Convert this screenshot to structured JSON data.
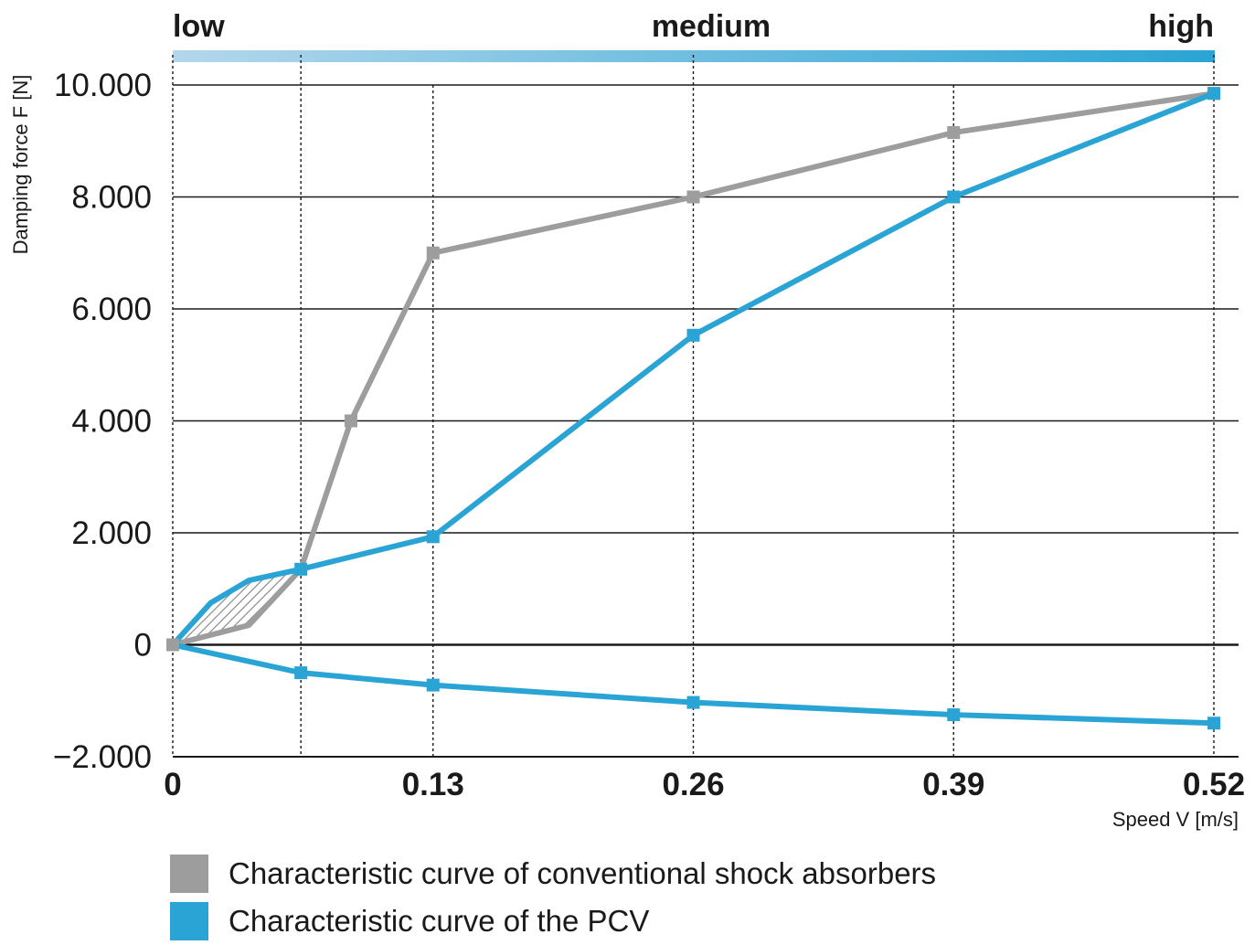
{
  "chart_data": {
    "type": "line",
    "band": {
      "labels": [
        "low",
        "medium",
        "high"
      ],
      "colors": [
        "#b3d7ec",
        "#2aa4d4"
      ]
    },
    "ylabel": "Damping force F [N]",
    "xlabel": "Speed V [m/s]",
    "xlim": [
      0,
      0.52
    ],
    "ylim": [
      -2000,
      10000
    ],
    "x_tick_values": [
      0,
      0.13,
      0.26,
      0.39,
      0.52
    ],
    "x_tick_labels": [
      "0",
      "0.13",
      "0.26",
      "0.39",
      "0.52"
    ],
    "y_tick_values": [
      10000,
      8000,
      6000,
      4000,
      2000,
      0,
      -2000
    ],
    "y_tick_labels": [
      "10.000",
      "8.000",
      "6.000",
      "4.000",
      "2.000",
      "0",
      "−2.000"
    ],
    "grid": true,
    "hatched_region": "between series at low speed (0 to 0.064 m/s)",
    "series": [
      {
        "name": "Characteristic curve of conventional shock absorbers",
        "color": "#9d9d9d",
        "points": [
          [
            0,
            0
          ],
          [
            0.038,
            350
          ],
          [
            0.064,
            1350
          ],
          [
            0.089,
            4000
          ],
          [
            0.13,
            7000
          ],
          [
            0.26,
            8000
          ],
          [
            0.39,
            9150
          ],
          [
            0.52,
            9850
          ]
        ]
      },
      {
        "name": "Characteristic curve of the PCV",
        "color": "#2aa4d4",
        "points": [
          [
            0,
            0
          ],
          [
            0.019,
            750
          ],
          [
            0.038,
            1150
          ],
          [
            0.064,
            1350
          ],
          [
            0.13,
            1930
          ],
          [
            0.26,
            5530
          ],
          [
            0.39,
            8000
          ],
          [
            0.52,
            9850
          ]
        ]
      },
      {
        "name": "",
        "color": "#2aa4d4",
        "points": [
          [
            0,
            0
          ],
          [
            0.064,
            -500
          ],
          [
            0.13,
            -720
          ],
          [
            0.26,
            -1030
          ],
          [
            0.39,
            -1250
          ],
          [
            0.52,
            -1400
          ]
        ]
      }
    ],
    "markers": {
      "gray": [
        [
          0,
          0
        ],
        [
          0.089,
          4000
        ],
        [
          0.13,
          7000
        ],
        [
          0.26,
          8000
        ],
        [
          0.39,
          9150
        ],
        [
          0.52,
          9850
        ]
      ],
      "blue": [
        [
          0.064,
          1350
        ],
        [
          0.13,
          1930
        ],
        [
          0.26,
          5530
        ],
        [
          0.39,
          8000
        ],
        [
          0.52,
          9850
        ],
        [
          0.064,
          -500
        ],
        [
          0.13,
          -720
        ],
        [
          0.26,
          -1030
        ],
        [
          0.39,
          -1250
        ],
        [
          0.52,
          -1400
        ]
      ]
    }
  },
  "legend": [
    {
      "label": "Characteristic curve of conventional shock absorbers",
      "color": "#9d9d9d"
    },
    {
      "label": "Characteristic curve of the PCV",
      "color": "#2aa4d4"
    }
  ]
}
